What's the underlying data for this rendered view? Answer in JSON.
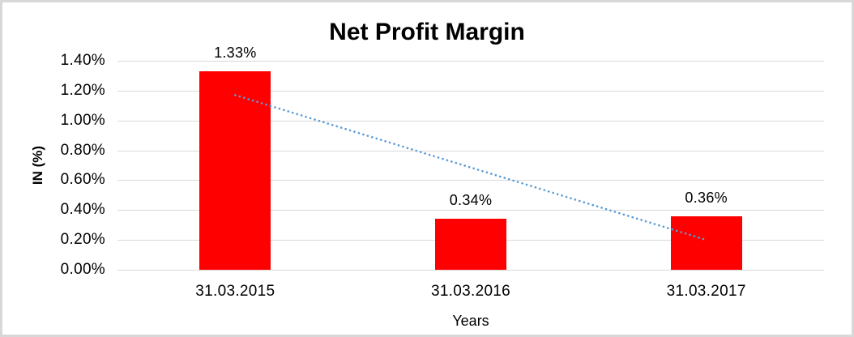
{
  "chart_data": {
    "type": "bar",
    "title": "Net Profit Margin",
    "categories": [
      "31.03.2015",
      "31.03.2016",
      "31.03.2017"
    ],
    "values": [
      1.33,
      0.34,
      0.36
    ],
    "data_labels": [
      "1.33%",
      "0.34%",
      "0.36%"
    ],
    "xlabel": "Years",
    "ylabel": "IN (%)",
    "ylim": [
      0,
      1.4
    ],
    "ytick_step": 0.2,
    "yticks": [
      "1.40%",
      "1.20%",
      "1.00%",
      "0.80%",
      "0.60%",
      "0.40%",
      "0.20%",
      "0.00%"
    ],
    "grid": "horizontal",
    "legend": "none",
    "bar_color": "#FF0000",
    "gridline_color": "#D9D9D9",
    "frame_border_color": "#D8D8D8",
    "text_color": "#000000",
    "trendline": {
      "style": "dotted",
      "color": "#5B9BD5",
      "start": {
        "category_index": 0,
        "value": 1.17
      },
      "end": {
        "category_index": 2,
        "value": 0.2
      }
    }
  }
}
